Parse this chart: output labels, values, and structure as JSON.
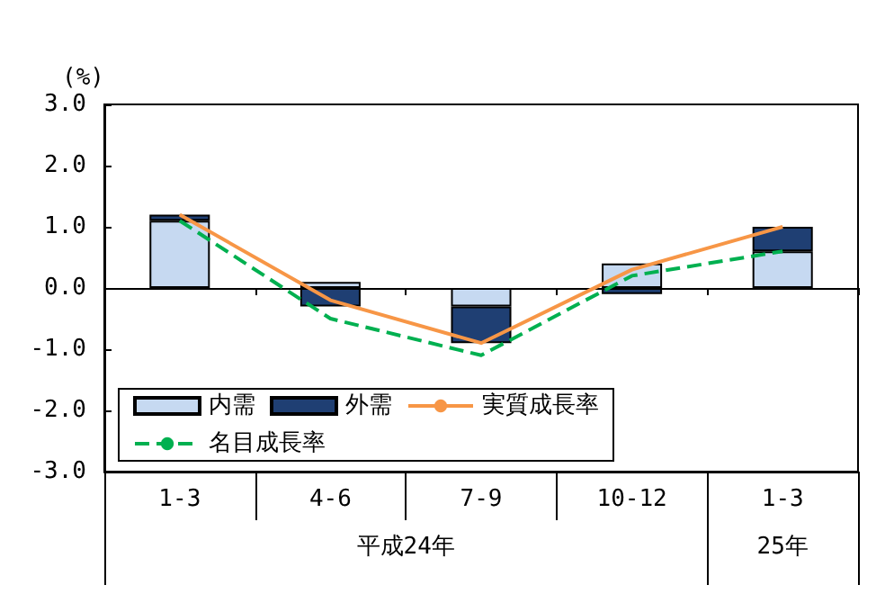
{
  "chart_data": {
    "type": "bar",
    "ylabel": "(%)",
    "categories": [
      "1-3",
      "4-6",
      "7-9",
      "10-12",
      "1-3"
    ],
    "stacked": true,
    "series": [
      {
        "name": "内需",
        "color": "#c6d9f1",
        "values": [
          1.1,
          0.1,
          -0.3,
          0.4,
          0.6
        ]
      },
      {
        "name": "外需",
        "color": "#1f3f73",
        "values": [
          0.1,
          -0.3,
          -0.6,
          -0.1,
          0.4
        ]
      },
      {
        "name": "実質成長率",
        "type": "line",
        "color": "#f79646",
        "line_style": "solid",
        "values": [
          1.2,
          -0.2,
          -0.9,
          0.3,
          1.0
        ]
      },
      {
        "name": "名目成長率",
        "type": "line",
        "color": "#00b050",
        "line_style": "dashed",
        "values": [
          1.1,
          -0.5,
          -1.1,
          0.2,
          0.6
        ]
      }
    ],
    "annotations": [
      "平成24年",
      "25年"
    ],
    "ylim": [
      -3,
      3
    ],
    "yticks": [
      {
        "value": -3,
        "label": "-3.0"
      },
      {
        "value": -2,
        "label": "-2.0"
      },
      {
        "value": -1,
        "label": "-1.0"
      },
      {
        "value": 0,
        "label": "0.0"
      },
      {
        "value": 1,
        "label": "1.0"
      },
      {
        "value": 2,
        "label": "2.0"
      },
      {
        "value": 3,
        "label": "3.0"
      }
    ],
    "legend": "bottom left",
    "marker": "none"
  }
}
